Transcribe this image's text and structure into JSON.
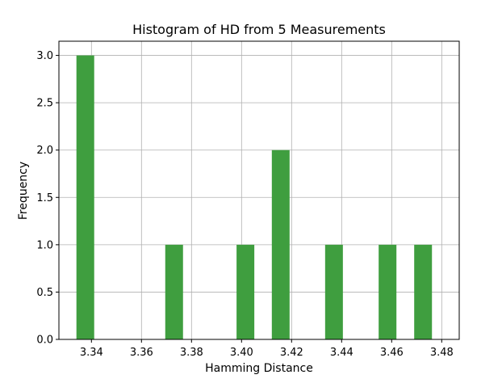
{
  "chart_data": {
    "type": "bar",
    "subtype": "histogram",
    "title": "Histogram of HD from 5 Measurements",
    "xlabel": "Hamming Distance",
    "ylabel": "Frequency",
    "xlim": [
      3.327,
      3.487
    ],
    "ylim": [
      0,
      3.15
    ],
    "bin_width": 0.0071,
    "grid": true,
    "bar_color": "#3f9e3f",
    "bars": [
      {
        "x_start": 3.334,
        "count": 3
      },
      {
        "x_start": 3.3695,
        "count": 1
      },
      {
        "x_start": 3.398,
        "count": 1
      },
      {
        "x_start": 3.4121,
        "count": 2
      },
      {
        "x_start": 3.4334,
        "count": 1
      },
      {
        "x_start": 3.4548,
        "count": 1
      },
      {
        "x_start": 3.469,
        "count": 1
      }
    ],
    "xticks": [
      {
        "value": 3.34,
        "label": "3.34"
      },
      {
        "value": 3.36,
        "label": "3.36"
      },
      {
        "value": 3.38,
        "label": "3.38"
      },
      {
        "value": 3.4,
        "label": "3.40"
      },
      {
        "value": 3.42,
        "label": "3.42"
      },
      {
        "value": 3.44,
        "label": "3.44"
      },
      {
        "value": 3.46,
        "label": "3.46"
      },
      {
        "value": 3.48,
        "label": "3.48"
      }
    ],
    "yticks": [
      {
        "value": 0.0,
        "label": "0.0"
      },
      {
        "value": 0.5,
        "label": "0.5"
      },
      {
        "value": 1.0,
        "label": "1.0"
      },
      {
        "value": 1.5,
        "label": "1.5"
      },
      {
        "value": 2.0,
        "label": "2.0"
      },
      {
        "value": 2.5,
        "label": "2.5"
      },
      {
        "value": 3.0,
        "label": "3.0"
      }
    ]
  }
}
